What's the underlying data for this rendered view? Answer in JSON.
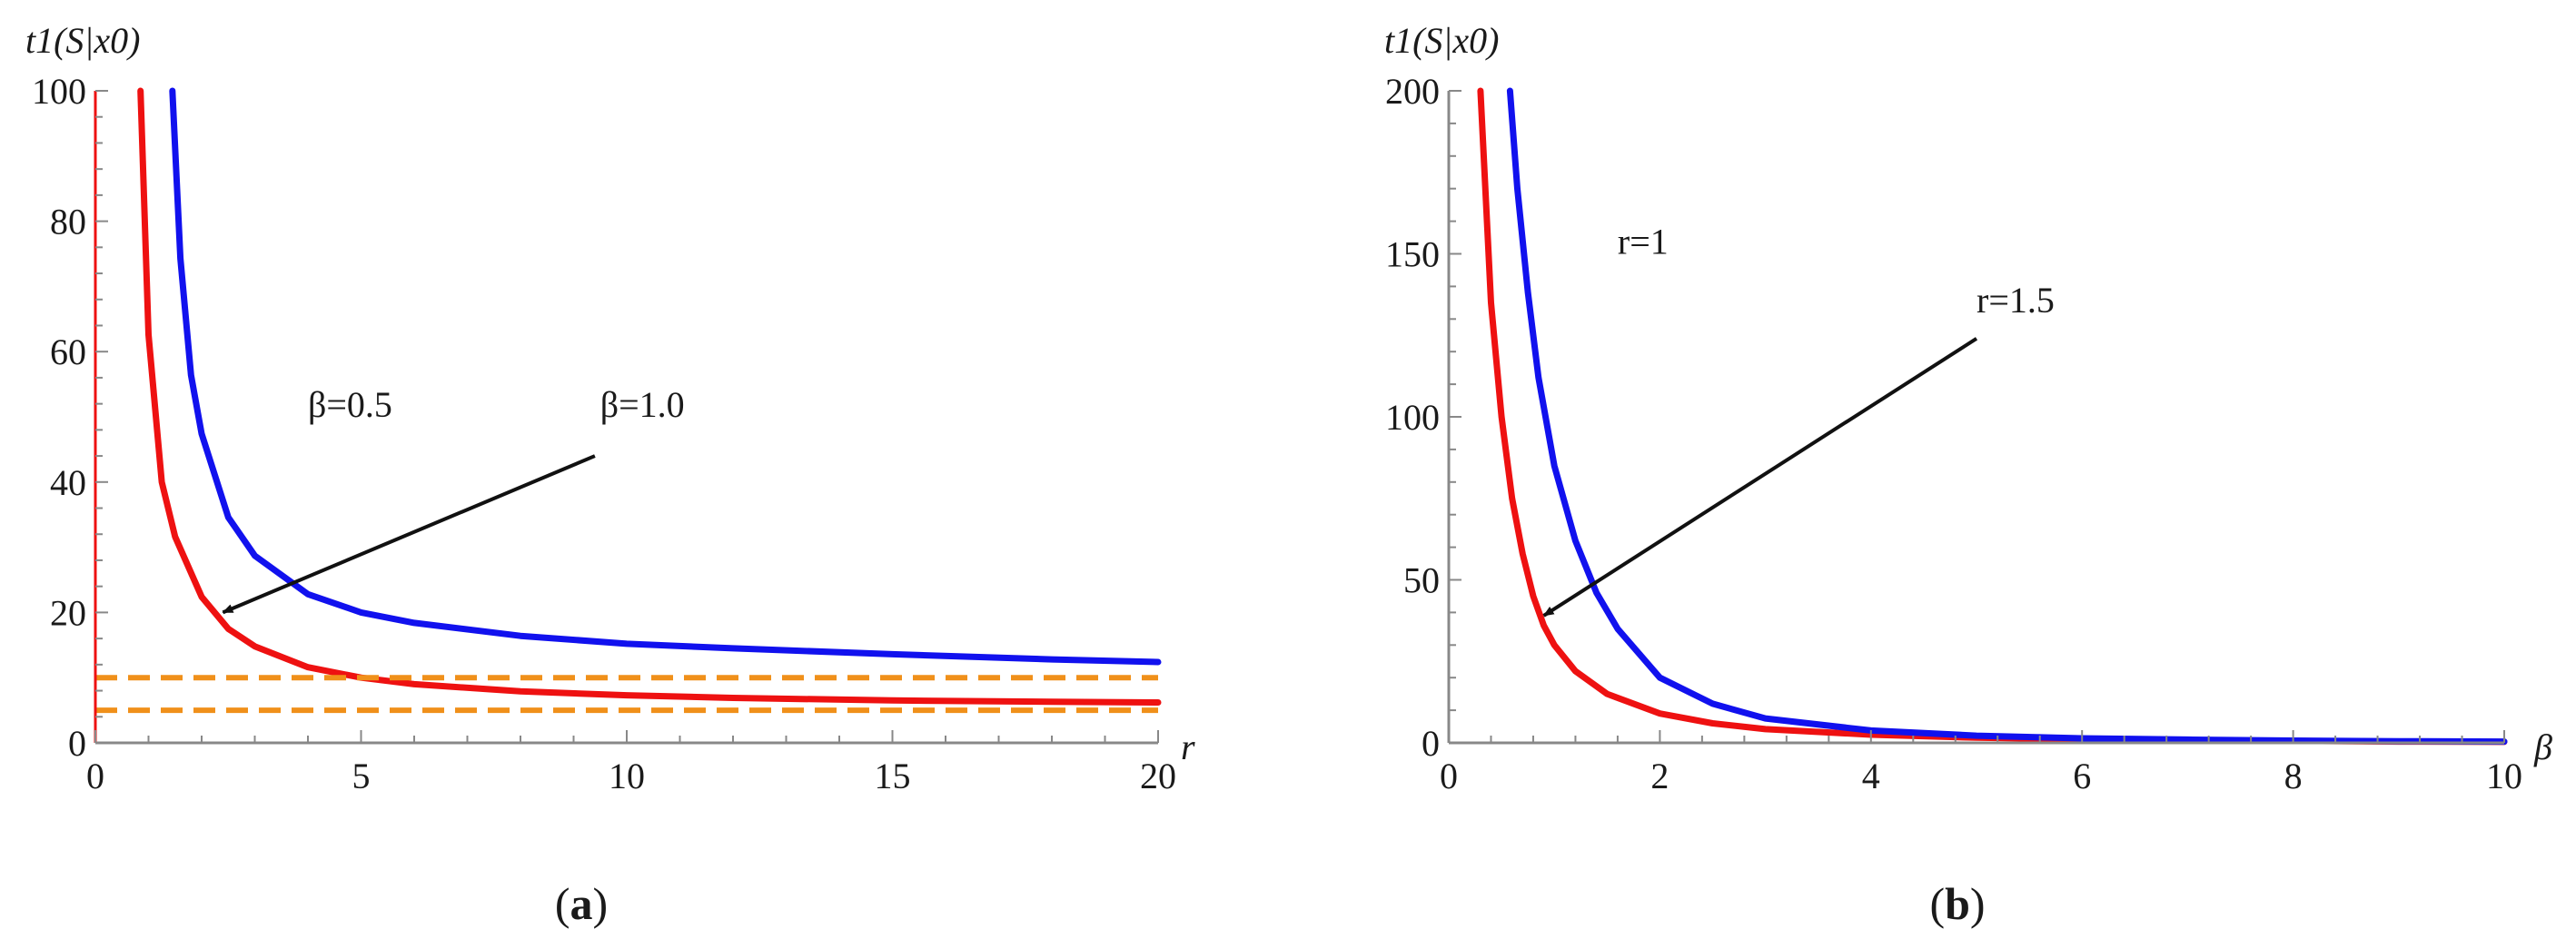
{
  "chart_data": [
    {
      "id": "a",
      "type": "line",
      "panel_label": "a",
      "title": "",
      "xlabel": "r",
      "ylabel": "t1(S|x0)",
      "xlim": [
        0,
        20
      ],
      "ylim": [
        0,
        100
      ],
      "xticks": [
        0,
        5,
        10,
        15,
        20
      ],
      "yticks": [
        0,
        20,
        40,
        60,
        80,
        100
      ],
      "grid": false,
      "colors": {
        "beta_0_5": "#ee1111",
        "beta_1_0": "#1111ee",
        "reference": "#f0901a"
      },
      "series": [
        {
          "name": "β=0.5",
          "color": "#ee1111",
          "x": [
            0.85,
            1,
            1.25,
            1.5,
            2,
            2.5,
            3,
            4,
            5,
            6,
            8,
            10,
            12,
            15,
            18,
            20
          ],
          "y": [
            100,
            62.6,
            40,
            31.6,
            22.4,
            17.5,
            14.8,
            11.6,
            10.0,
            9.0,
            7.9,
            7.3,
            6.9,
            6.5,
            6.3,
            6.2
          ]
        },
        {
          "name": "β=1.0",
          "color": "#1111ee",
          "x": [
            1.45,
            1.6,
            1.8,
            2,
            2.5,
            3,
            4,
            5,
            6,
            8,
            10,
            12,
            15,
            18,
            20
          ],
          "y": [
            100,
            74.3,
            56.4,
            47.4,
            34.6,
            28.7,
            22.8,
            20.0,
            18.4,
            16.4,
            15.2,
            14.5,
            13.6,
            12.8,
            12.4
          ]
        },
        {
          "name": "",
          "color": "#f0901a",
          "dashed": true,
          "x": [
            0,
            20
          ],
          "y": [
            10,
            10
          ]
        },
        {
          "name": "",
          "color": "#f0901a",
          "dashed": true,
          "x": [
            0,
            20
          ],
          "y": [
            5,
            5
          ]
        }
      ],
      "annotations": [
        {
          "text": "β=0.5",
          "x": 4.0,
          "y": 50
        },
        {
          "text": "β=1.0",
          "x": 9.5,
          "y": 50
        }
      ],
      "arrow": {
        "from": [
          9.4,
          44
        ],
        "to": [
          2.4,
          20
        ]
      }
    },
    {
      "id": "b",
      "type": "line",
      "panel_label": "b",
      "title": "",
      "xlabel": "β",
      "ylabel": "t1(S|x0)",
      "xlim": [
        0,
        10
      ],
      "ylim": [
        0,
        200
      ],
      "xticks": [
        0,
        2,
        4,
        6,
        8,
        10
      ],
      "yticks": [
        0,
        50,
        100,
        150,
        200
      ],
      "grid": false,
      "colors": {
        "r_1_5": "#ee1111",
        "r_1": "#1111ee"
      },
      "series": [
        {
          "name": "r=1.5",
          "color": "#ee1111",
          "x": [
            0.3,
            0.4,
            0.5,
            0.6,
            0.7,
            0.8,
            0.9,
            1.0,
            1.2,
            1.5,
            2,
            2.5,
            3,
            4,
            5,
            6,
            7,
            8,
            9,
            10
          ],
          "y": [
            200,
            135,
            100,
            75,
            58,
            45,
            36,
            30,
            22,
            15,
            9,
            6,
            4.2,
            2.5,
            1.6,
            1.1,
            0.8,
            0.6,
            0.4,
            0.3
          ]
        },
        {
          "name": "r=1",
          "color": "#1111ee",
          "x": [
            0.58,
            0.65,
            0.75,
            0.85,
            1.0,
            1.2,
            1.4,
            1.6,
            2,
            2.5,
            3,
            4,
            5,
            6,
            7,
            8,
            9,
            10
          ],
          "y": [
            200,
            170,
            138,
            112,
            85,
            62,
            46,
            35,
            20,
            12,
            7.5,
            3.8,
            2.2,
            1.4,
            1.0,
            0.7,
            0.5,
            0.4
          ]
        }
      ],
      "annotations": [
        {
          "text": "r=1",
          "x": 1.6,
          "y": 150
        },
        {
          "text": "r=1.5",
          "x": 5.0,
          "y": 132
        }
      ],
      "arrow": {
        "from": [
          5.0,
          124
        ],
        "to": [
          0.9,
          39
        ]
      }
    }
  ]
}
